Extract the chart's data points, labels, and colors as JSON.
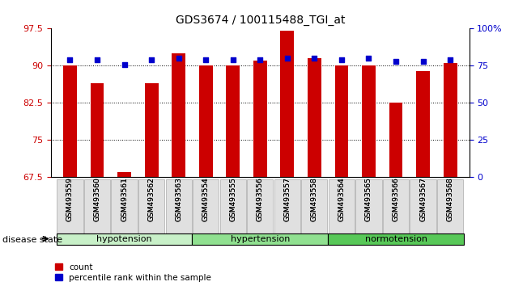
{
  "title": "GDS3674 / 100115488_TGI_at",
  "samples": [
    "GSM493559",
    "GSM493560",
    "GSM493561",
    "GSM493562",
    "GSM493563",
    "GSM493554",
    "GSM493555",
    "GSM493556",
    "GSM493557",
    "GSM493558",
    "GSM493564",
    "GSM493565",
    "GSM493566",
    "GSM493567",
    "GSM493568"
  ],
  "bar_values": [
    90.0,
    86.5,
    68.5,
    86.5,
    92.5,
    90.0,
    90.0,
    91.0,
    97.0,
    91.5,
    90.0,
    90.0,
    82.5,
    89.0,
    90.5
  ],
  "dot_pct": [
    79,
    79,
    76,
    79,
    80,
    79,
    79,
    79,
    80,
    80,
    79,
    80,
    78,
    78,
    79
  ],
  "groups": [
    {
      "label": "hypotension",
      "start": 0,
      "end": 5,
      "color": "#c8f0c8"
    },
    {
      "label": "hypertension",
      "start": 5,
      "end": 10,
      "color": "#90e090"
    },
    {
      "label": "normotension",
      "start": 10,
      "end": 15,
      "color": "#58c858"
    }
  ],
  "ylim_left": [
    67.5,
    97.5
  ],
  "yticks_left": [
    67.5,
    75.0,
    82.5,
    90.0,
    97.5
  ],
  "ylim_right": [
    0,
    100
  ],
  "yticks_right": [
    0,
    25,
    50,
    75,
    100
  ],
  "ytick_right_labels": [
    "0",
    "25",
    "50",
    "75",
    "100%"
  ],
  "bar_color": "#cc0000",
  "dot_color": "#0000cc",
  "bg_color": "#ffffff",
  "bar_width": 0.5
}
